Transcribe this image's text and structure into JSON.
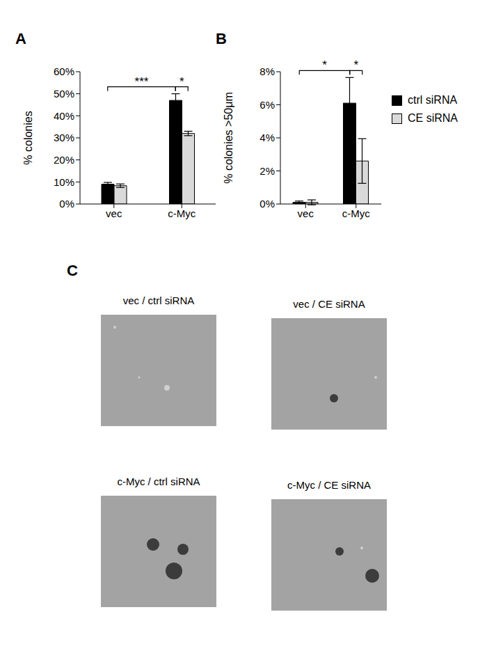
{
  "chart_data": [
    {
      "type": "bar",
      "title": "A",
      "categories": [
        "vec",
        "c-Myc"
      ],
      "y_label": "% colonies",
      "ylim": [
        0,
        60
      ],
      "yticks": [
        {
          "value": 0,
          "label": "0%"
        },
        {
          "value": 10,
          "label": "10%"
        },
        {
          "value": 20,
          "label": "20%"
        },
        {
          "value": 30,
          "label": "30%"
        },
        {
          "value": 40,
          "label": "40%"
        },
        {
          "value": 50,
          "label": "50%"
        },
        {
          "value": 60,
          "label": "60%"
        }
      ],
      "series": [
        {
          "color": "#000000",
          "values": [
            9,
            47
          ],
          "error": [
            0.8,
            3
          ]
        },
        {
          "color": "#d9d9d9",
          "values": [
            8.3,
            32
          ],
          "error": [
            0.8,
            1
          ]
        }
      ],
      "annotations": [
        {
          "text": "***",
          "between": [
            [
              0,
              0
            ],
            [
              1,
              0
            ]
          ]
        },
        {
          "text": "*",
          "between": [
            [
              1,
              0
            ],
            [
              1,
              1
            ]
          ]
        }
      ]
    },
    {
      "type": "bar",
      "title": "B",
      "categories": [
        "vec",
        "c-Myc"
      ],
      "y_label": "% colonies >50μm",
      "ylim": [
        0,
        8
      ],
      "yticks": [
        {
          "value": 0,
          "label": "0%"
        },
        {
          "value": 2,
          "label": "2%"
        },
        {
          "value": 4,
          "label": "4%"
        },
        {
          "value": 6,
          "label": "6%"
        },
        {
          "value": 8,
          "label": "8%"
        }
      ],
      "legend": "right",
      "series": [
        {
          "name": "ctrl siRNA",
          "color": "#000000",
          "values": [
            0.1,
            6.1
          ],
          "error": [
            0.08,
            1.55
          ]
        },
        {
          "name": "CE siRNA",
          "color": "#d9d9d9",
          "values": [
            0.1,
            2.6
          ],
          "error": [
            0.15,
            1.35
          ]
        }
      ],
      "annotations": [
        {
          "text": "*",
          "between": [
            [
              0,
              0
            ],
            [
              1,
              0
            ]
          ]
        },
        {
          "text": "*",
          "between": [
            [
              1,
              0
            ],
            [
              1,
              1
            ]
          ]
        }
      ]
    }
  ],
  "panel_c": {
    "title": "C",
    "images": [
      {
        "caption": "vec / ctrl siRNA"
      },
      {
        "caption": "vec / CE siRNA"
      },
      {
        "caption": "c-Myc / ctrl siRNA"
      },
      {
        "caption": "c-Myc / CE siRNA"
      }
    ]
  }
}
